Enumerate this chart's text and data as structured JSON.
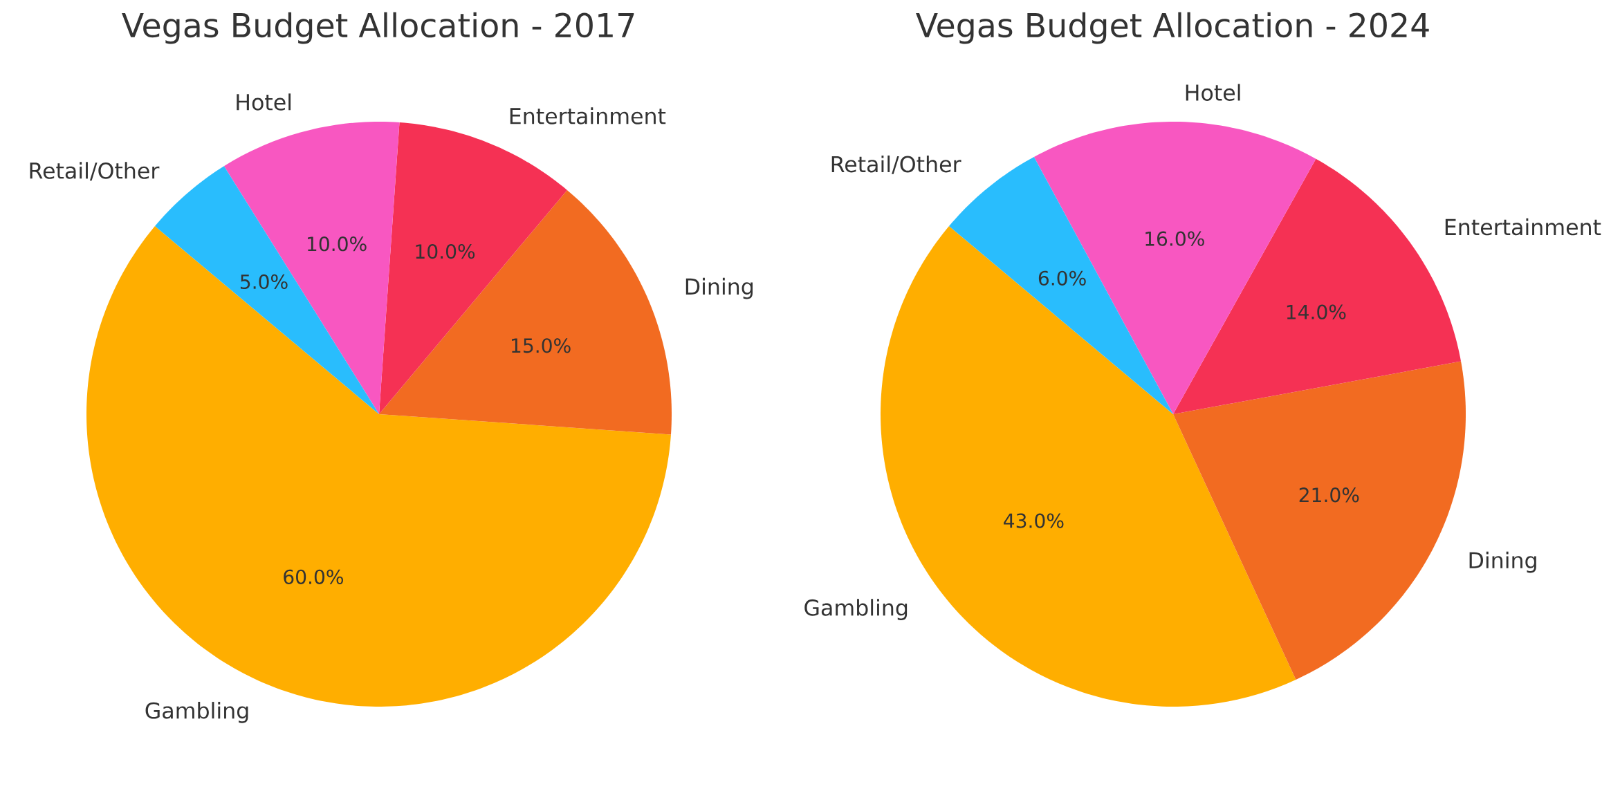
{
  "chart_data": [
    {
      "type": "pie",
      "title": "Vegas Budget Allocation - 2017",
      "categories": [
        "Gambling",
        "Dining",
        "Entertainment",
        "Hotel",
        "Retail/Other"
      ],
      "values": [
        60,
        15,
        10,
        10,
        5
      ],
      "colors": [
        "#ffae00",
        "#f26b21",
        "#f53154",
        "#f857c1",
        "#29bdfd"
      ],
      "value_labels": [
        "60.0%",
        "15.0%",
        "10.0%",
        "10.0%",
        "5.0%"
      ]
    },
    {
      "type": "pie",
      "title": "Vegas Budget Allocation - 2024",
      "categories": [
        "Gambling",
        "Dining",
        "Entertainment",
        "Hotel",
        "Retail/Other"
      ],
      "values": [
        43,
        21,
        14,
        16,
        6
      ],
      "colors": [
        "#ffae00",
        "#f26b21",
        "#f53154",
        "#f857c1",
        "#29bdfd"
      ],
      "value_labels": [
        "43.0%",
        "21.0%",
        "14.0%",
        "16.0%",
        "6.0%"
      ]
    }
  ]
}
